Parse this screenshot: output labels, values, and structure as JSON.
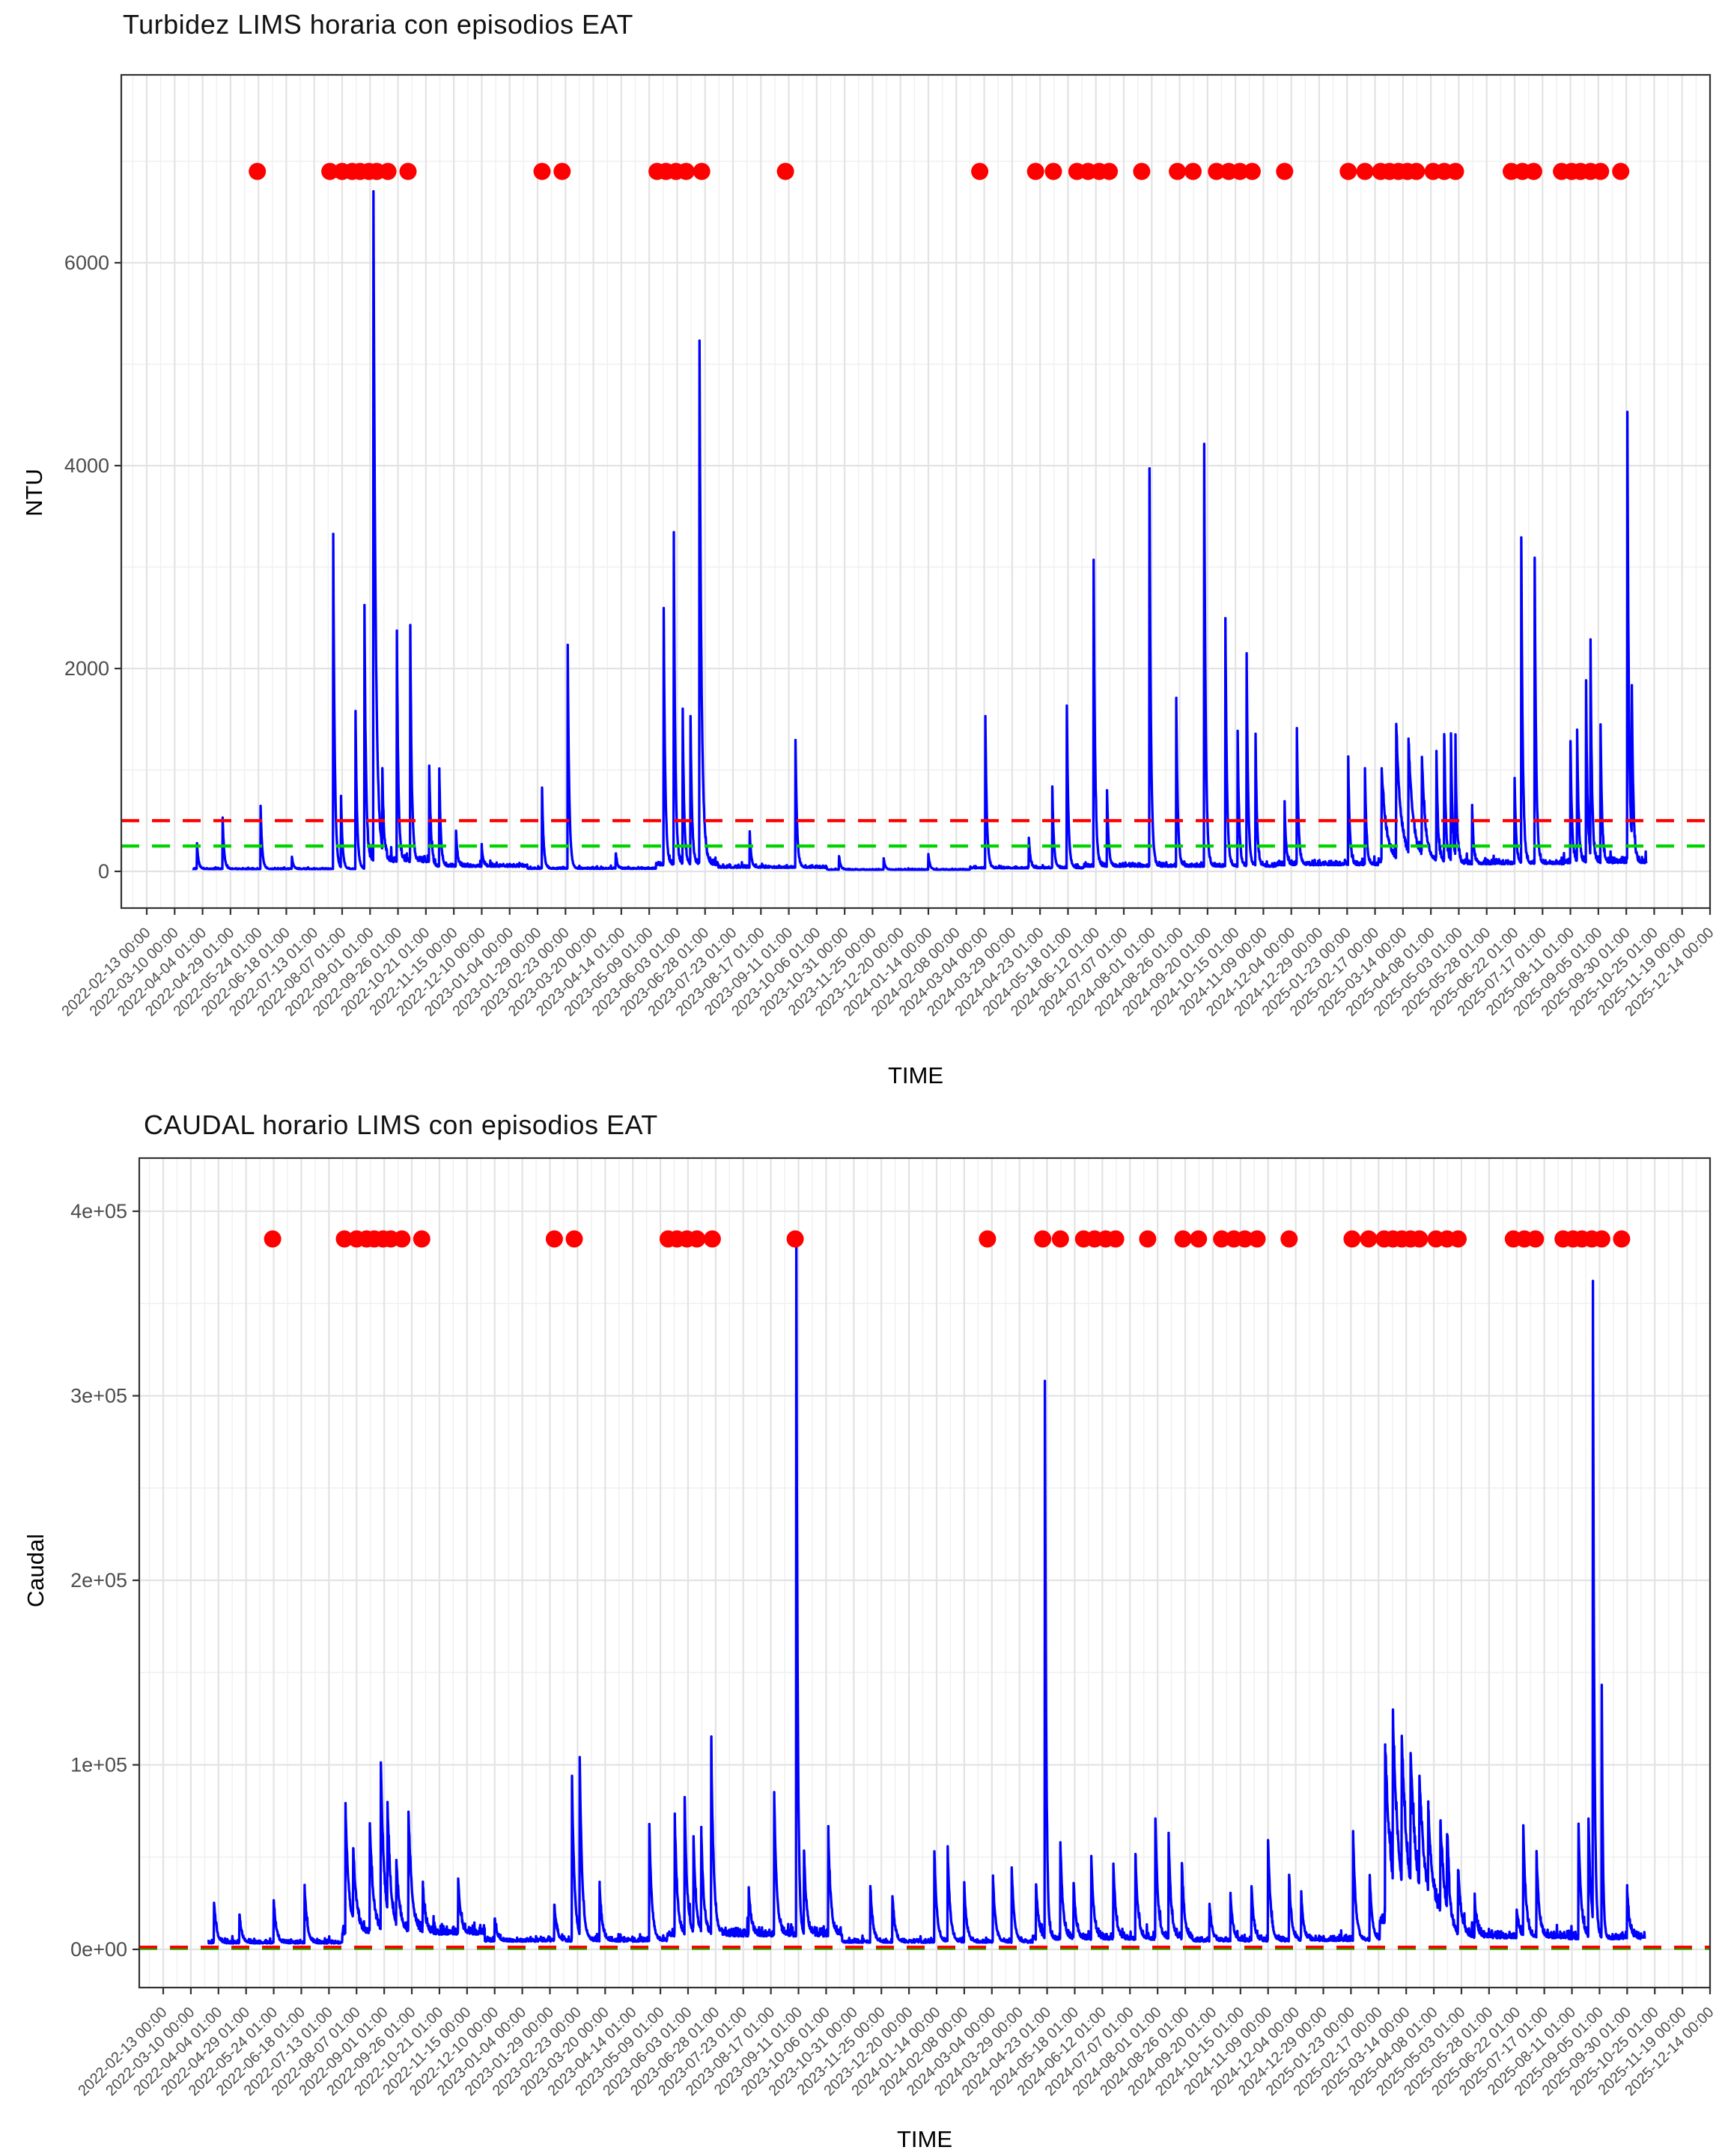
{
  "page": {
    "background": "#FFFFFF"
  },
  "episode_dates": [
    "2022-05-23",
    "2022-07-27",
    "2022-08-07",
    "2022-08-16",
    "2022-08-23",
    "2022-08-31",
    "2022-09-07",
    "2022-09-17",
    "2022-10-05",
    "2023-02-02",
    "2023-02-20",
    "2023-05-16",
    "2023-05-24",
    "2023-06-02",
    "2023-06-11",
    "2023-06-25",
    "2023-09-08",
    "2024-02-29",
    "2024-04-19",
    "2024-05-05",
    "2024-05-26",
    "2024-06-05",
    "2024-06-15",
    "2024-06-24",
    "2024-07-23",
    "2024-08-24",
    "2024-09-07",
    "2024-09-28",
    "2024-10-09",
    "2024-10-19",
    "2024-10-30",
    "2024-11-28",
    "2025-01-24",
    "2025-02-08",
    "2025-02-22",
    "2025-03-02",
    "2025-03-10",
    "2025-03-18",
    "2025-03-26",
    "2025-04-10",
    "2025-04-20",
    "2025-04-30",
    "2025-06-19",
    "2025-06-29",
    "2025-07-09",
    "2025-08-03",
    "2025-08-12",
    "2025-08-20",
    "2025-08-29",
    "2025-09-07",
    "2025-09-25"
  ],
  "chart_data": [
    {
      "type": "line",
      "title": "Turbidez LIMS horaria con episodios EAT",
      "xlabel": "TIME",
      "ylabel": "NTU",
      "legend": "none",
      "grid": "on",
      "line_color": "#0000FF",
      "ylim": [
        -375,
        7875
      ],
      "y_ticks": [
        0,
        2000,
        4000,
        6000
      ],
      "y_tick_labels": [
        "0",
        "2000",
        "4000",
        "6000"
      ],
      "y_minor": [
        1000,
        3000,
        5000,
        7000
      ],
      "x_tick_step_days": 25,
      "x_tick_labels": [
        "2022-02-13 00:00",
        "2022-03-10 00:00",
        "2022-04-04 01:00",
        "2022-04-29 01:00",
        "2022-05-24 01:00",
        "2022-06-18 01:00",
        "2022-07-13 01:00",
        "2022-08-07 01:00",
        "2022-09-01 01:00",
        "2022-09-26 01:00",
        "2022-10-21 01:00",
        "2022-11-15 00:00",
        "2022-12-10 00:00",
        "2023-01-04 00:00",
        "2023-01-29 00:00",
        "2023-02-23 00:00",
        "2023-03-20 00:00",
        "2023-04-14 01:00",
        "2023-05-09 01:00",
        "2023-06-03 01:00",
        "2023-06-28 01:00",
        "2023-07-23 01:00",
        "2023-08-17 01:00",
        "2023-09-11 01:00",
        "2023-10-06 01:00",
        "2023-10-31 00:00",
        "2023-11-25 00:00",
        "2023-12-20 00:00",
        "2024-01-14 00:00",
        "2024-02-08 00:00",
        "2024-03-04 00:00",
        "2024-03-29 00:00",
        "2024-04-23 01:00",
        "2024-05-18 01:00",
        "2024-06-12 01:00",
        "2024-07-07 01:00",
        "2024-08-01 01:00",
        "2024-08-26 01:00",
        "2024-09-20 01:00",
        "2024-10-15 01:00",
        "2024-11-09 00:00",
        "2024-12-04 00:00",
        "2024-12-29 00:00",
        "2025-01-23 00:00",
        "2025-02-17 00:00",
        "2025-03-14 00:00",
        "2025-04-08 01:00",
        "2025-05-03 01:00",
        "2025-05-28 01:00",
        "2025-06-22 01:00",
        "2025-07-17 01:00",
        "2025-08-11 01:00",
        "2025-09-05 01:00",
        "2025-09-30 01:00",
        "2025-10-25 01:00",
        "2025-11-19 00:00",
        "2025-12-14 00:00"
      ],
      "thresholds": [
        {
          "value": 500,
          "color": "#FF0000",
          "style": "dashed"
        },
        {
          "value": 250,
          "color": "#00D400",
          "style": "dashed"
        }
      ],
      "episode_marker": {
        "value": 6900,
        "color": "#FF0000"
      },
      "line": {
        "start": "2022-03-26",
        "end": "2025-10-18",
        "decay": 1.3,
        "min": 4,
        "segments": [
          [
            "2022-03-26",
            22,
            12
          ],
          [
            "2022-08-28",
            90,
            90
          ],
          [
            "2022-10-28",
            45,
            40
          ],
          [
            "2023-01-20",
            25,
            20
          ],
          [
            "2023-05-15",
            60,
            60
          ],
          [
            "2023-07-10",
            35,
            30
          ],
          [
            "2023-10-15",
            16,
            10
          ],
          [
            "2024-02-20",
            30,
            25
          ],
          [
            "2024-06-01",
            45,
            45
          ],
          [
            "2024-11-20",
            60,
            55
          ],
          [
            "2025-02-20",
            90,
            80
          ],
          [
            "2025-05-05",
            70,
            60
          ],
          [
            "2025-08-05",
            80,
            80
          ]
        ]
      },
      "peaks": [
        [
          "2022-03-30",
          250
        ],
        [
          "2022-04-22",
          500
        ],
        [
          "2022-05-26",
          620
        ],
        [
          "2022-06-23",
          120
        ],
        [
          "2022-07-30",
          3300
        ],
        [
          "2022-08-06",
          700
        ],
        [
          "2022-08-19",
          1550
        ],
        [
          "2022-08-27",
          2600
        ],
        [
          "2022-09-04",
          6600,
          2
        ],
        [
          "2022-09-12",
          800
        ],
        [
          "2022-09-25",
          2250
        ],
        [
          "2022-10-07",
          2300
        ],
        [
          "2022-10-24",
          950
        ],
        [
          "2022-11-02",
          950
        ],
        [
          "2022-11-17",
          350
        ],
        [
          "2022-12-10",
          200
        ],
        [
          "2023-02-02",
          800
        ],
        [
          "2023-02-25",
          2200
        ],
        [
          "2023-04-09",
          150
        ],
        [
          "2023-05-22",
          2500
        ],
        [
          "2023-05-31",
          3250
        ],
        [
          "2023-06-08",
          1500
        ],
        [
          "2023-06-15",
          1450
        ],
        [
          "2023-06-23",
          5150,
          1.8
        ],
        [
          "2023-08-07",
          350
        ],
        [
          "2023-09-17",
          1250
        ],
        [
          "2023-10-26",
          130
        ],
        [
          "2023-12-05",
          110
        ],
        [
          "2024-01-14",
          150
        ],
        [
          "2024-03-05",
          1500
        ],
        [
          "2024-04-13",
          300
        ],
        [
          "2024-05-04",
          800
        ],
        [
          "2024-05-17",
          1600
        ],
        [
          "2024-06-10",
          3000
        ],
        [
          "2024-06-22",
          750
        ],
        [
          "2024-07-30",
          3900
        ],
        [
          "2024-08-23",
          1650
        ],
        [
          "2024-09-17",
          4150
        ],
        [
          "2024-10-06",
          2450
        ],
        [
          "2024-10-17",
          1300
        ],
        [
          "2024-10-25",
          2100
        ],
        [
          "2024-11-02",
          1300
        ],
        [
          "2024-11-28",
          600
        ],
        [
          "2024-12-09",
          1350
        ],
        [
          "2025-01-24",
          1050
        ],
        [
          "2025-02-08",
          950
        ],
        [
          "2025-02-23",
          900,
          4
        ],
        [
          "2025-03-08",
          1300,
          4
        ],
        [
          "2025-03-19",
          1100,
          4
        ],
        [
          "2025-03-31",
          950,
          3
        ],
        [
          "2025-04-13",
          1050
        ],
        [
          "2025-04-20",
          1250
        ],
        [
          "2025-04-26",
          1250
        ],
        [
          "2025-04-30",
          1100
        ],
        [
          "2025-05-15",
          550
        ],
        [
          "2025-06-22",
          850
        ],
        [
          "2025-06-28",
          3200
        ],
        [
          "2025-07-10",
          3000
        ],
        [
          "2025-08-11",
          1200
        ],
        [
          "2025-08-17",
          1300
        ],
        [
          "2025-08-25",
          1750
        ],
        [
          "2025-08-29",
          2000
        ],
        [
          "2025-09-07",
          1350
        ],
        [
          "2025-10-01",
          4450
        ],
        [
          "2025-10-05",
          1550
        ]
      ]
    },
    {
      "type": "line",
      "title": "CAUDAL horario LIMS con episodios EAT",
      "xlabel": "TIME",
      "ylabel": "Caudal",
      "legend": "none",
      "grid": "on",
      "line_color": "#0000FF",
      "ylim": [
        -20700,
        428800
      ],
      "y_ticks": [
        0,
        100000,
        200000,
        300000,
        400000
      ],
      "y_tick_labels": [
        "0e+00",
        "1e+05",
        "2e+05",
        "3e+05",
        "4e+05"
      ],
      "y_minor": [
        50000,
        150000,
        250000,
        350000
      ],
      "x_tick_step_days": 25,
      "x_tick_labels": [
        "2022-02-13 00:00",
        "2022-03-10 00:00",
        "2022-04-04 01:00",
        "2022-04-29 01:00",
        "2022-05-24 01:00",
        "2022-06-18 01:00",
        "2022-07-13 01:00",
        "2022-08-07 01:00",
        "2022-09-01 01:00",
        "2022-09-26 01:00",
        "2022-10-21 01:00",
        "2022-11-15 00:00",
        "2022-12-10 00:00",
        "2023-01-04 00:00",
        "2023-01-29 00:00",
        "2023-02-23 00:00",
        "2023-03-20 00:00",
        "2023-04-14 01:00",
        "2023-05-09 01:00",
        "2023-06-03 01:00",
        "2023-06-28 01:00",
        "2023-07-23 01:00",
        "2023-08-17 01:00",
        "2023-09-11 01:00",
        "2023-10-06 01:00",
        "2023-10-31 00:00",
        "2023-11-25 00:00",
        "2023-12-20 00:00",
        "2024-01-14 00:00",
        "2024-02-08 00:00",
        "2024-03-04 00:00",
        "2024-03-29 00:00",
        "2024-04-23 01:00",
        "2024-05-18 01:00",
        "2024-06-12 01:00",
        "2024-07-07 01:00",
        "2024-08-01 01:00",
        "2024-08-26 01:00",
        "2024-09-20 01:00",
        "2024-10-15 01:00",
        "2024-11-09 00:00",
        "2024-12-04 00:00",
        "2024-12-29 00:00",
        "2025-01-23 00:00",
        "2025-02-17 00:00",
        "2025-03-14 00:00",
        "2025-04-08 01:00",
        "2025-05-03 01:00",
        "2025-05-28 01:00",
        "2025-06-22 01:00",
        "2025-07-17 01:00",
        "2025-08-11 01:00",
        "2025-09-05 01:00",
        "2025-09-30 01:00",
        "2025-10-25 01:00",
        "2025-11-19 00:00",
        "2025-12-14 00:00"
      ],
      "thresholds": [
        {
          "value": 1200,
          "color": "#FF0000",
          "style": "dashed"
        },
        {
          "value": 500,
          "color": "#00D400",
          "style": "dashed"
        }
      ],
      "episode_marker": {
        "value": 385000,
        "color": "#FF0000"
      },
      "line": {
        "start": "2022-03-26",
        "end": "2025-10-16",
        "decay": 2.2,
        "min": 700,
        "segments": [
          [
            "2022-03-26",
            3200,
            2400
          ],
          [
            "2022-07-25",
            8000,
            6000
          ],
          [
            "2022-12-01",
            4200,
            3000
          ],
          [
            "2023-05-15",
            7000,
            5200
          ],
          [
            "2023-10-20",
            3600,
            2600
          ],
          [
            "2024-04-10",
            5200,
            4200
          ],
          [
            "2024-09-01",
            4200,
            3200
          ],
          [
            "2024-12-15",
            4500,
            3500
          ],
          [
            "2025-02-18",
            14000,
            10000
          ],
          [
            "2025-04-22",
            6000,
            5000
          ],
          [
            "2025-08-05",
            5500,
            5000
          ]
        ]
      },
      "peaks": [
        [
          "2022-03-31",
          22000
        ],
        [
          "2022-04-23",
          15000
        ],
        [
          "2022-05-24",
          23000
        ],
        [
          "2022-06-21",
          30000
        ],
        [
          "2022-07-28",
          67000,
          3
        ],
        [
          "2022-08-04",
          40000,
          3
        ],
        [
          "2022-08-19",
          60000,
          3
        ],
        [
          "2022-08-29",
          88000,
          3
        ],
        [
          "2022-09-04",
          58000,
          3
        ],
        [
          "2022-09-12",
          35000,
          3
        ],
        [
          "2022-09-23",
          65000,
          3
        ],
        [
          "2022-10-06",
          25000
        ],
        [
          "2022-11-07",
          30000
        ],
        [
          "2022-12-10",
          12000
        ],
        [
          "2023-02-02",
          20000
        ],
        [
          "2023-02-18",
          88000
        ],
        [
          "2023-02-25",
          95000
        ],
        [
          "2023-03-15",
          30000
        ],
        [
          "2023-04-29",
          63000
        ],
        [
          "2023-05-22",
          65000
        ],
        [
          "2023-05-31",
          70000
        ],
        [
          "2023-06-08",
          52000
        ],
        [
          "2023-06-15",
          55000
        ],
        [
          "2023-06-24",
          103000
        ],
        [
          "2023-07-28",
          25000
        ],
        [
          "2023-08-20",
          77000
        ],
        [
          "2023-09-09",
          375000,
          1.2
        ],
        [
          "2023-09-16",
          45000
        ],
        [
          "2023-10-08",
          55000
        ],
        [
          "2023-11-15",
          30000
        ],
        [
          "2023-12-05",
          25000
        ],
        [
          "2024-01-12",
          48000
        ],
        [
          "2024-01-24",
          50000
        ],
        [
          "2024-02-08",
          30000
        ],
        [
          "2024-03-05",
          35000
        ],
        [
          "2024-03-22",
          40000
        ],
        [
          "2024-04-13",
          30000
        ],
        [
          "2024-04-21",
          302000,
          1.2
        ],
        [
          "2024-05-05",
          52000
        ],
        [
          "2024-05-17",
          30000
        ],
        [
          "2024-06-02",
          45000
        ],
        [
          "2024-06-22",
          40000
        ],
        [
          "2024-07-12",
          45000
        ],
        [
          "2024-07-30",
          65000
        ],
        [
          "2024-08-11",
          55000
        ],
        [
          "2024-08-23",
          40000
        ],
        [
          "2024-09-17",
          20000
        ],
        [
          "2024-10-06",
          25000
        ],
        [
          "2024-10-25",
          30000
        ],
        [
          "2024-11-09",
          55000
        ],
        [
          "2024-11-28",
          35000
        ],
        [
          "2024-12-09",
          25000
        ],
        [
          "2025-01-25",
          58000
        ],
        [
          "2025-02-09",
          35000
        ],
        [
          "2025-02-23",
          93000,
          5
        ],
        [
          "2025-03-02",
          87000,
          5
        ],
        [
          "2025-03-10",
          78000,
          5
        ],
        [
          "2025-03-18",
          72000,
          5
        ],
        [
          "2025-03-26",
          60000,
          5
        ],
        [
          "2025-04-03",
          45000,
          4
        ],
        [
          "2025-04-14",
          50000,
          3
        ],
        [
          "2025-04-20",
          40000,
          3
        ],
        [
          "2025-04-30",
          35000,
          3
        ],
        [
          "2025-05-15",
          20000
        ],
        [
          "2025-06-22",
          15000
        ],
        [
          "2025-06-28",
          60000
        ],
        [
          "2025-07-10",
          45000
        ],
        [
          "2025-08-17",
          62000
        ],
        [
          "2025-08-26",
          63000
        ],
        [
          "2025-08-30",
          344000,
          1.2
        ],
        [
          "2025-09-07",
          137000,
          1.0
        ],
        [
          "2025-09-30",
          25000
        ]
      ]
    }
  ]
}
